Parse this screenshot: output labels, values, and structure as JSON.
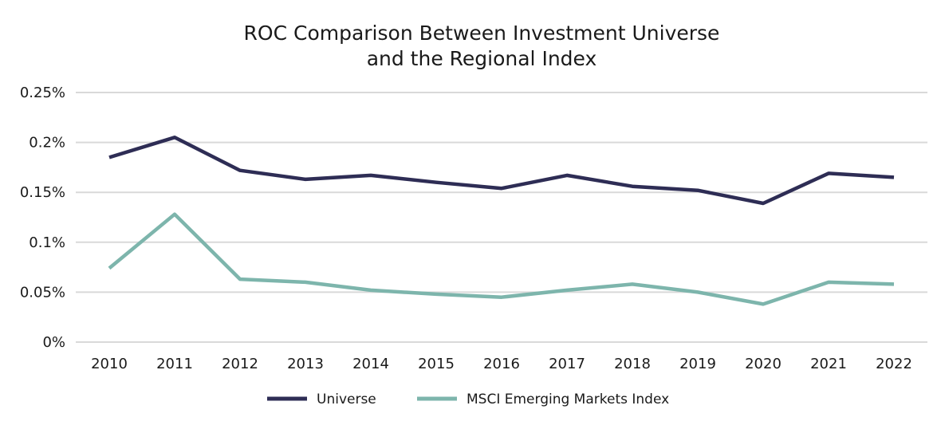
{
  "chart_data": {
    "type": "line",
    "title_lines": [
      "ROC Comparison Between Investment Universe",
      "and the Regional Index"
    ],
    "xlabel": "",
    "ylabel": "",
    "categories": [
      "2010",
      "2011",
      "2012",
      "2013",
      "2014",
      "2015",
      "2016",
      "2017",
      "2018",
      "2019",
      "2020",
      "2021",
      "2022"
    ],
    "ylim": [
      0,
      0.25
    ],
    "yticks": [
      0,
      0.05,
      0.1,
      0.15,
      0.2,
      0.25
    ],
    "ytick_labels": [
      "0%",
      "0.05%",
      "0.1%",
      "0.15%",
      "0.2%",
      "0.25%"
    ],
    "grid": true,
    "legend_position": "bottom",
    "series": [
      {
        "name": "Universe",
        "color": "#2e2d55",
        "values": [
          0.185,
          0.205,
          0.172,
          0.163,
          0.167,
          0.16,
          0.154,
          0.167,
          0.156,
          0.152,
          0.139,
          0.169,
          0.165
        ]
      },
      {
        "name": "MSCI Emerging Markets Index",
        "color": "#7db5ac",
        "values": [
          0.074,
          0.128,
          0.063,
          0.06,
          0.052,
          0.048,
          0.045,
          0.052,
          0.058,
          0.05,
          0.038,
          0.06,
          0.058
        ]
      }
    ]
  }
}
